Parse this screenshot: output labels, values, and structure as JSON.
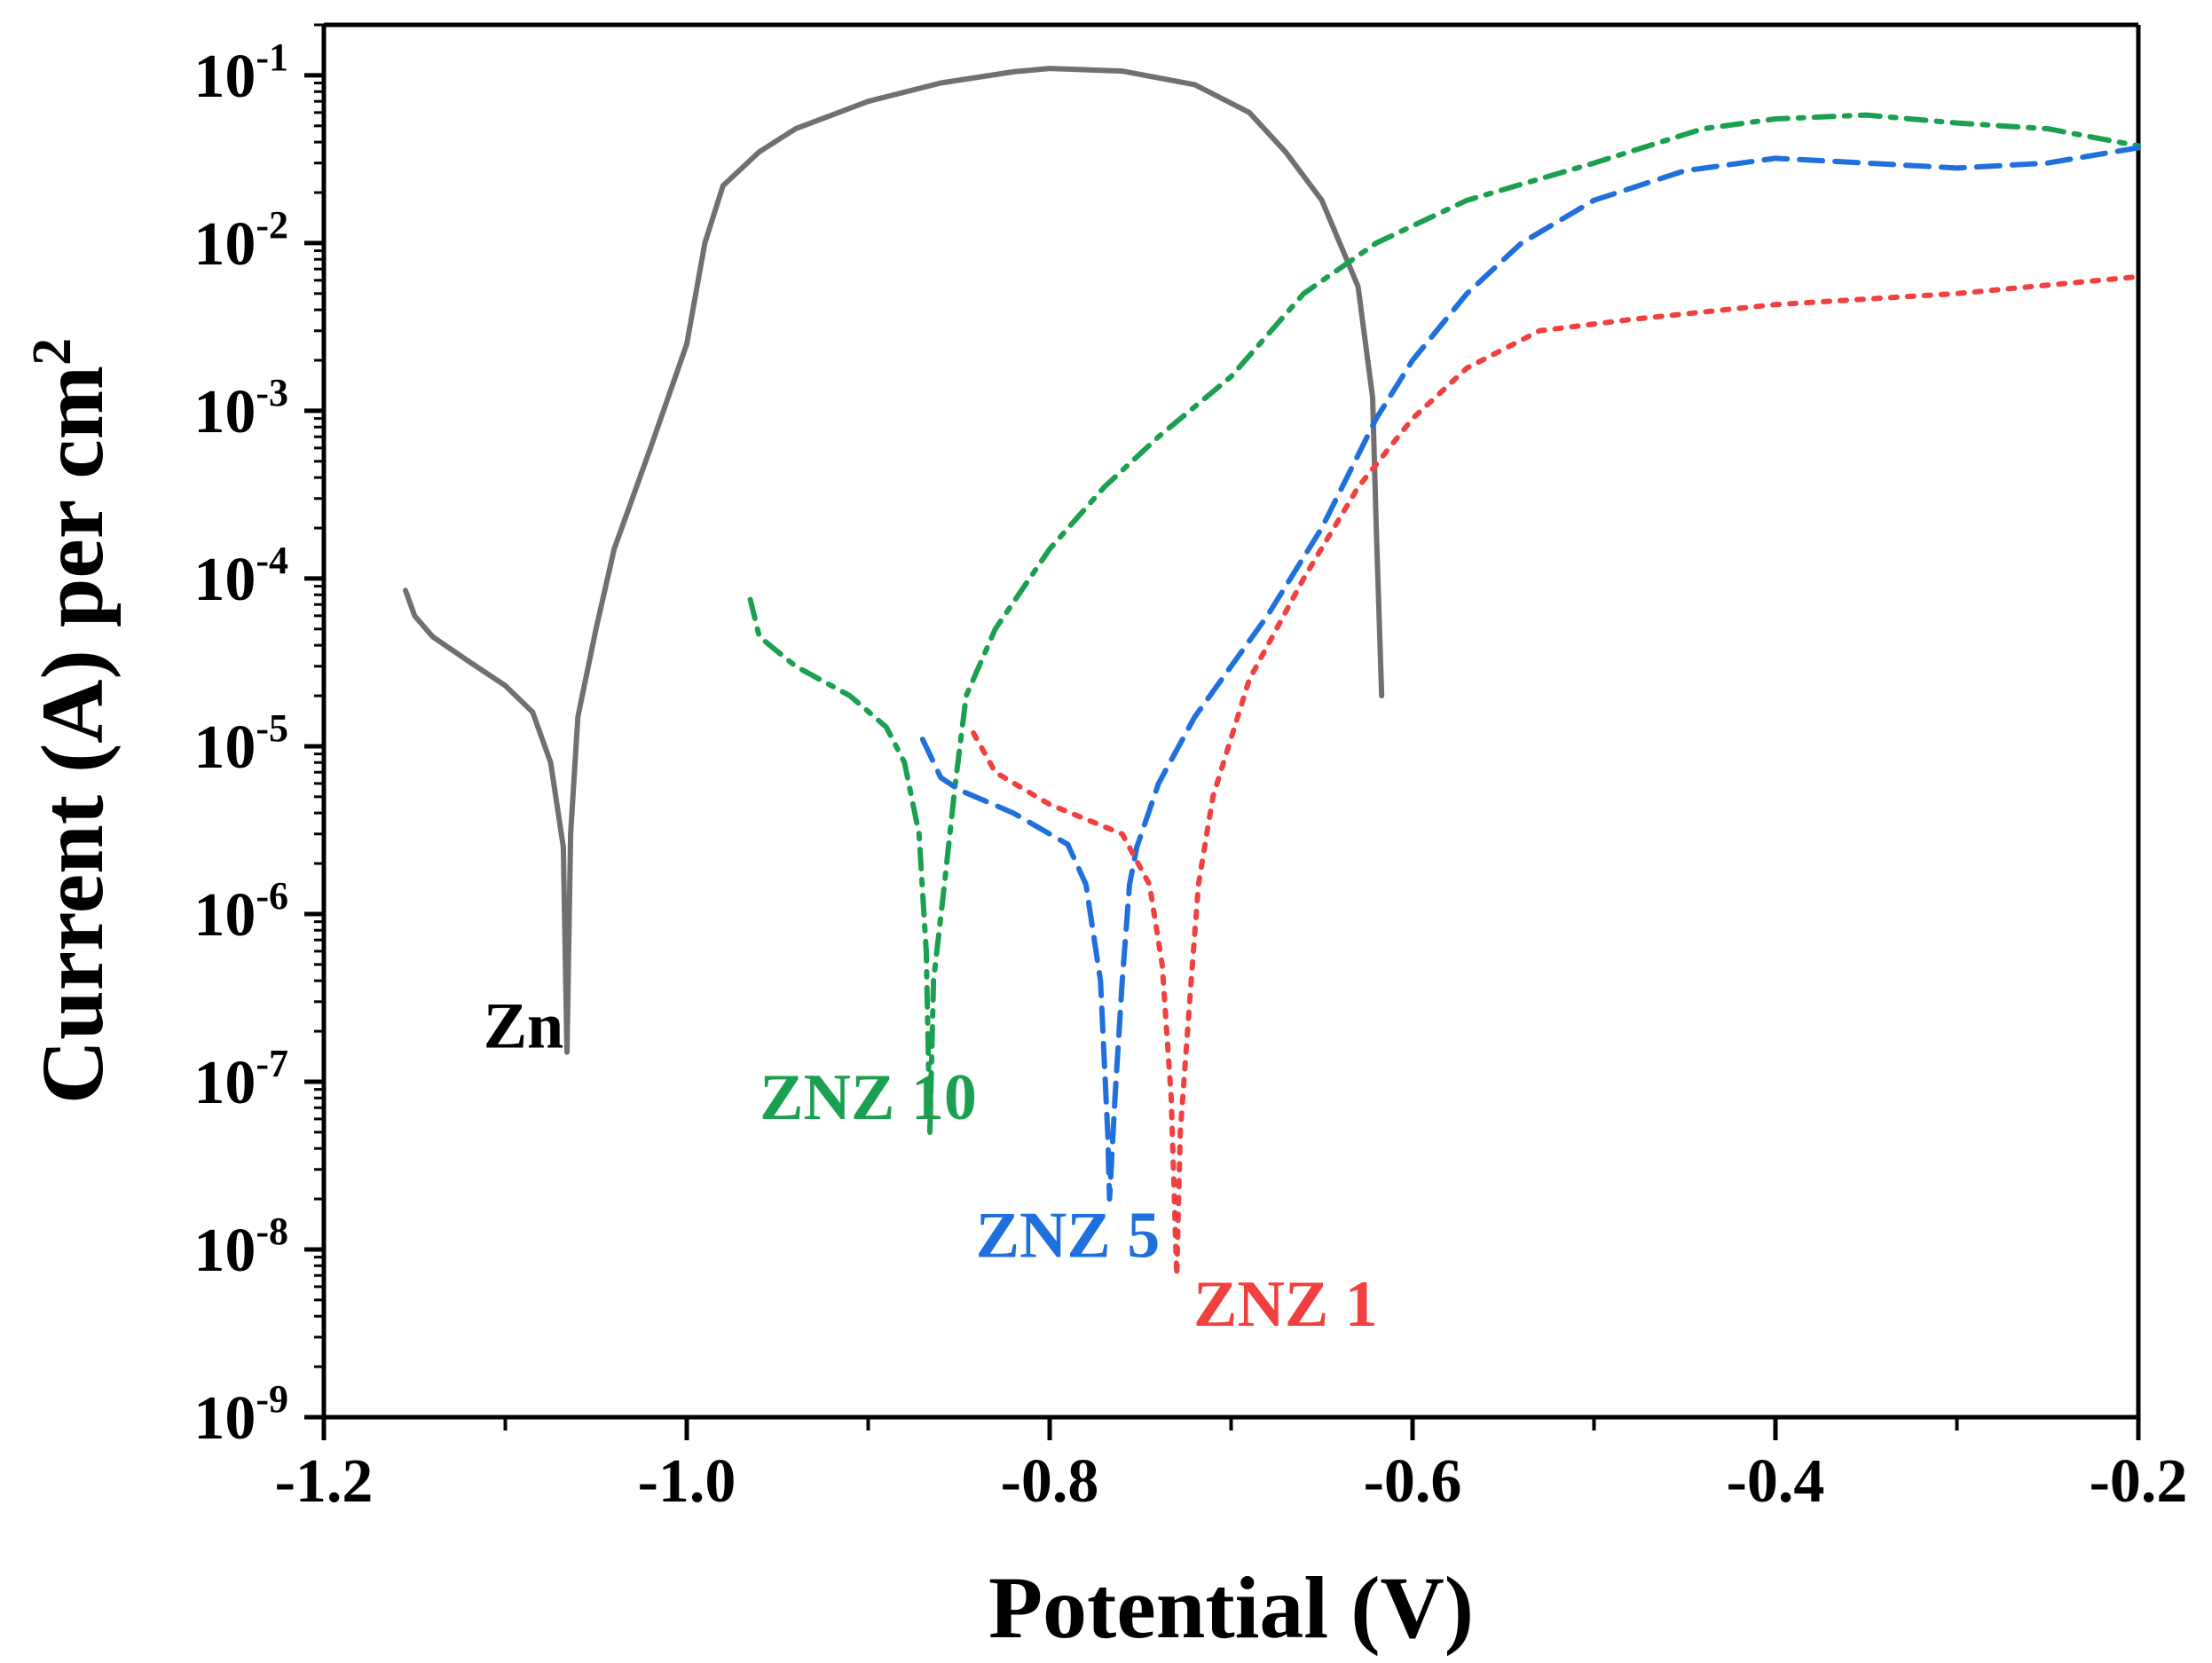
{
  "chart_data": {
    "type": "line",
    "title": "",
    "xlabel": "Potential (V)",
    "ylabel": "Current (A) per cm",
    "ylabel_superscript": "2",
    "xscale": "linear",
    "yscale": "log",
    "xlim": [
      -1.2,
      -0.2
    ],
    "ylim": [
      1e-09,
      0.2
    ],
    "xticks": [
      -1.2,
      -1.0,
      -0.8,
      -0.6,
      -0.4,
      -0.2
    ],
    "xtick_labels": [
      "-1.2",
      "-1.0",
      "-0.8",
      "-0.6",
      "-0.4",
      "-0.2"
    ],
    "yticks": [
      {
        "value": 1e-09,
        "base": "10",
        "exp": "-9"
      },
      {
        "value": 1e-08,
        "base": "10",
        "exp": "-8"
      },
      {
        "value": 1e-07,
        "base": "10",
        "exp": "-7"
      },
      {
        "value": 1e-06,
        "base": "10",
        "exp": "-6"
      },
      {
        "value": 1e-05,
        "base": "10",
        "exp": "-5"
      },
      {
        "value": 0.0001,
        "base": "10",
        "exp": "-4"
      },
      {
        "value": 0.001,
        "base": "10",
        "exp": "-3"
      },
      {
        "value": 0.01,
        "base": "10",
        "exp": "-2"
      },
      {
        "value": 0.1,
        "base": "10",
        "exp": "-1"
      }
    ],
    "grid": false,
    "series": [
      {
        "name": "Zn",
        "color": "#707070",
        "style": "solid",
        "label_anchor": [
          -1.09,
          1.6e-07
        ],
        "points": [
          [
            -1.155,
            8.5e-05
          ],
          [
            -1.15,
            6e-05
          ],
          [
            -1.14,
            4.5e-05
          ],
          [
            -1.12,
            3.2e-05
          ],
          [
            -1.1,
            2.3e-05
          ],
          [
            -1.085,
            1.6e-05
          ],
          [
            -1.075,
            8e-06
          ],
          [
            -1.068,
            2.5e-06
          ],
          [
            -1.066,
            1.5e-07
          ],
          [
            -1.064,
            3e-06
          ],
          [
            -1.06,
            1.5e-05
          ],
          [
            -1.05,
            5e-05
          ],
          [
            -1.04,
            0.00015
          ],
          [
            -1.02,
            0.0006
          ],
          [
            -1.0,
            0.0025
          ],
          [
            -0.99,
            0.01
          ],
          [
            -0.98,
            0.022
          ],
          [
            -0.96,
            0.035
          ],
          [
            -0.94,
            0.048
          ],
          [
            -0.9,
            0.07
          ],
          [
            -0.86,
            0.09
          ],
          [
            -0.82,
            0.105
          ],
          [
            -0.8,
            0.11
          ],
          [
            -0.76,
            0.106
          ],
          [
            -0.72,
            0.088
          ],
          [
            -0.69,
            0.06
          ],
          [
            -0.67,
            0.035
          ],
          [
            -0.65,
            0.018
          ],
          [
            -0.63,
            0.0055
          ],
          [
            -0.622,
            0.0012
          ],
          [
            -0.62,
            0.0002
          ],
          [
            -0.617,
            2e-05
          ]
        ]
      },
      {
        "name": "ZNZ 10",
        "color": "#1aa050",
        "style": "dashdot",
        "label_anchor": [
          -0.9,
          6e-08
        ],
        "points": [
          [
            -0.965,
            7.5e-05
          ],
          [
            -0.96,
            4.5e-05
          ],
          [
            -0.94,
            3e-05
          ],
          [
            -0.91,
            2e-05
          ],
          [
            -0.89,
            1.3e-05
          ],
          [
            -0.88,
            8e-06
          ],
          [
            -0.872,
            3e-06
          ],
          [
            -0.868,
            6e-07
          ],
          [
            -0.866,
            5e-08
          ],
          [
            -0.864,
            4e-07
          ],
          [
            -0.858,
            1.5e-06
          ],
          [
            -0.852,
            6e-06
          ],
          [
            -0.846,
            2e-05
          ],
          [
            -0.83,
            5e-05
          ],
          [
            -0.8,
            0.00015
          ],
          [
            -0.77,
            0.00035
          ],
          [
            -0.74,
            0.0007
          ],
          [
            -0.7,
            0.0016
          ],
          [
            -0.66,
            0.005
          ],
          [
            -0.62,
            0.01
          ],
          [
            -0.57,
            0.018
          ],
          [
            -0.5,
            0.03
          ],
          [
            -0.44,
            0.048
          ],
          [
            -0.4,
            0.055
          ],
          [
            -0.35,
            0.058
          ],
          [
            -0.3,
            0.052
          ],
          [
            -0.25,
            0.048
          ],
          [
            -0.2,
            0.038
          ]
        ]
      },
      {
        "name": "ZNZ 5",
        "color": "#1f6fdc",
        "style": "dashed",
        "label_anchor": [
          -0.79,
          9e-09
        ],
        "points": [
          [
            -0.87,
            1.1e-05
          ],
          [
            -0.86,
            6.5e-06
          ],
          [
            -0.85,
            5.5e-06
          ],
          [
            -0.82,
            4e-06
          ],
          [
            -0.79,
            2.6e-06
          ],
          [
            -0.78,
            1.5e-06
          ],
          [
            -0.772,
            4e-07
          ],
          [
            -0.768,
            5e-08
          ],
          [
            -0.767,
            2e-08
          ],
          [
            -0.764,
            8e-08
          ],
          [
            -0.76,
            4e-07
          ],
          [
            -0.756,
            1.5e-06
          ],
          [
            -0.752,
            2.5e-06
          ],
          [
            -0.74,
            6e-06
          ],
          [
            -0.72,
            1.5e-05
          ],
          [
            -0.68,
            6e-05
          ],
          [
            -0.65,
            0.0002
          ],
          [
            -0.62,
            0.0009
          ],
          [
            -0.6,
            0.002
          ],
          [
            -0.57,
            0.005
          ],
          [
            -0.54,
            0.01
          ],
          [
            -0.5,
            0.018
          ],
          [
            -0.45,
            0.027
          ],
          [
            -0.4,
            0.032
          ],
          [
            -0.35,
            0.03
          ],
          [
            -0.3,
            0.028
          ],
          [
            -0.25,
            0.03
          ],
          [
            -0.2,
            0.037
          ]
        ]
      },
      {
        "name": "ZNZ 1",
        "color": "#f04040",
        "style": "dotted",
        "label_anchor": [
          -0.67,
          3.5e-09
        ],
        "points": [
          [
            -0.842,
            1.2e-05
          ],
          [
            -0.83,
            7e-06
          ],
          [
            -0.8,
            4.5e-06
          ],
          [
            -0.76,
            3e-06
          ],
          [
            -0.745,
            1.5e-06
          ],
          [
            -0.738,
            5e-07
          ],
          [
            -0.733,
            8e-08
          ],
          [
            -0.73,
            7e-09
          ],
          [
            -0.728,
            5e-08
          ],
          [
            -0.722,
            4e-07
          ],
          [
            -0.718,
            1.5e-06
          ],
          [
            -0.71,
            5e-06
          ],
          [
            -0.69,
            2.5e-05
          ],
          [
            -0.66,
            0.0001
          ],
          [
            -0.63,
            0.00035
          ],
          [
            -0.6,
            0.0009
          ],
          [
            -0.57,
            0.0018
          ],
          [
            -0.53,
            0.003
          ],
          [
            -0.48,
            0.0035
          ],
          [
            -0.4,
            0.0043
          ],
          [
            -0.3,
            0.005
          ],
          [
            -0.2,
            0.0063
          ]
        ]
      }
    ]
  }
}
